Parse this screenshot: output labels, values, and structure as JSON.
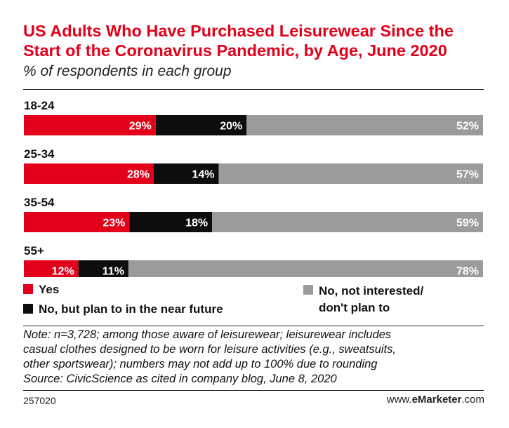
{
  "title": "US Adults Who Have Purchased Leisurewear Since the Start of the Coronavirus Pandemic, by Age, June 2020",
  "subtitle": "% of respondents in each group",
  "colors": {
    "yes": "#e2001a",
    "plan": "#0d0d0d",
    "no": "#9b9b9b"
  },
  "chart_data": {
    "type": "bar",
    "orientation": "horizontal",
    "stacked": true,
    "categories": [
      "18-24",
      "25-34",
      "35-54",
      "55+"
    ],
    "series": [
      {
        "name": "Yes",
        "values": [
          29,
          28,
          23,
          12
        ],
        "labels": [
          "29%",
          "28%",
          "23%",
          "12%"
        ],
        "color": "#e2001a"
      },
      {
        "name": "No, but plan to in the near future",
        "values": [
          20,
          14,
          18,
          11
        ],
        "labels": [
          "20%",
          "14%",
          "18%",
          "11%"
        ],
        "color": "#0d0d0d"
      },
      {
        "name": "No, not interested/ don't plan to",
        "values": [
          52,
          57,
          59,
          78
        ],
        "labels": [
          "52%",
          "57%",
          "59%",
          "78%"
        ],
        "color": "#9b9b9b"
      }
    ],
    "legend": "bottom"
  },
  "legend": {
    "yes": "Yes",
    "plan": "No, but plan to in the near future",
    "no": "No, not interested/\ndon't plan to"
  },
  "note": [
    "Note: n=3,728; among those aware of leisurewear; leisurewear includes",
    "casual clothes designed to be worn for leisure activities (e.g., sweatsuits,",
    "other sportswear); numbers may not add up to 100% due to rounding",
    "Source: CivicScience as cited in company blog, June 8, 2020"
  ],
  "footer": {
    "id": "257020",
    "brand_prefix": "www.",
    "brand_bold": "eMarketer",
    "brand_suffix": ".com"
  }
}
